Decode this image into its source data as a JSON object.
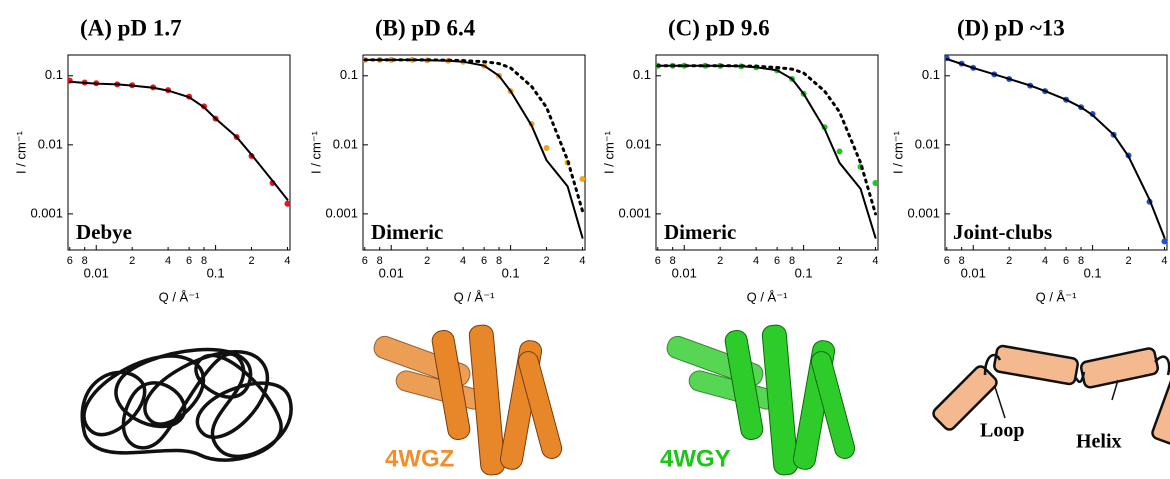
{
  "chart_data": [
    {
      "type": "line",
      "title": "(A) pD 1.7",
      "annotation": "Debye",
      "xlabel": "Q / Å⁻¹",
      "ylabel": "I / cm⁻¹",
      "log_x": true,
      "log_y": true,
      "x": [
        0.006,
        0.008,
        0.01,
        0.015,
        0.02,
        0.03,
        0.04,
        0.06,
        0.08,
        0.1,
        0.15,
        0.2,
        0.3,
        0.4
      ],
      "series": [
        {
          "style": "points",
          "color": "#e8161b",
          "values": [
            0.085,
            0.08,
            0.078,
            0.075,
            0.073,
            0.068,
            0.062,
            0.05,
            0.036,
            0.024,
            0.013,
            0.0069,
            0.0028,
            0.0014
          ]
        },
        {
          "style": "solid",
          "color": "#000000",
          "values": [
            0.082,
            0.079,
            0.077,
            0.075,
            0.072,
            0.067,
            0.061,
            0.049,
            0.035,
            0.024,
            0.013,
            0.0072,
            0.003,
            0.0016
          ]
        }
      ],
      "xlim": [
        0.0058,
        0.42
      ],
      "ylim": [
        0.0003,
        0.2
      ],
      "xticks": [
        {
          "value": 0.006,
          "label": "6"
        },
        {
          "value": 0.008,
          "label": "8"
        },
        0.01,
        {
          "value": 0.02,
          "label": "2"
        },
        {
          "value": 0.04,
          "label": "4"
        },
        {
          "value": 0.06,
          "label": "6"
        },
        {
          "value": 0.08,
          "label": "8"
        },
        0.1,
        {
          "value": 0.2,
          "label": "2"
        },
        {
          "value": 0.4,
          "label": "4"
        }
      ],
      "yticks": [
        0.001,
        0.01,
        0.1
      ]
    },
    {
      "type": "line",
      "title": "(B) pD 6.4",
      "annotation": "Dimeric",
      "xlabel": "Q / Å⁻¹",
      "ylabel": "I / cm⁻¹",
      "log_x": true,
      "log_y": true,
      "x": [
        0.006,
        0.008,
        0.01,
        0.015,
        0.02,
        0.03,
        0.04,
        0.06,
        0.08,
        0.1,
        0.15,
        0.2,
        0.3,
        0.4
      ],
      "series": [
        {
          "style": "points",
          "color": "#f5a31c",
          "values": [
            0.17,
            0.17,
            0.17,
            0.17,
            0.168,
            0.165,
            0.16,
            0.14,
            0.1,
            0.06,
            0.02,
            0.009,
            0.0055,
            0.0032
          ]
        },
        {
          "style": "solid",
          "color": "#000000",
          "values": [
            0.17,
            0.17,
            0.17,
            0.17,
            0.168,
            0.165,
            0.16,
            0.14,
            0.1,
            0.06,
            0.019,
            0.006,
            0.0025,
            0.00045
          ]
        },
        {
          "style": "dotted",
          "color": "#000000",
          "values": [
            0.17,
            0.17,
            0.17,
            0.17,
            0.17,
            0.168,
            0.166,
            0.16,
            0.15,
            0.13,
            0.07,
            0.035,
            0.006,
            0.0011
          ]
        }
      ],
      "xlim": [
        0.0058,
        0.42
      ],
      "ylim": [
        0.0003,
        0.2
      ],
      "xticks": [
        {
          "value": 0.006,
          "label": "6"
        },
        {
          "value": 0.008,
          "label": "8"
        },
        0.01,
        {
          "value": 0.02,
          "label": "2"
        },
        {
          "value": 0.04,
          "label": "4"
        },
        {
          "value": 0.06,
          "label": "6"
        },
        {
          "value": 0.08,
          "label": "8"
        },
        0.1,
        {
          "value": 0.2,
          "label": "2"
        },
        {
          "value": 0.4,
          "label": "4"
        }
      ],
      "yticks": [
        0.001,
        0.01,
        0.1
      ]
    },
    {
      "type": "line",
      "title": "(C) pD 9.6",
      "annotation": "Dimeric",
      "xlabel": "Q / Å⁻¹",
      "ylabel": "I / cm⁻¹",
      "log_x": true,
      "log_y": true,
      "x": [
        0.006,
        0.008,
        0.01,
        0.015,
        0.02,
        0.03,
        0.04,
        0.06,
        0.08,
        0.1,
        0.15,
        0.2,
        0.3,
        0.4
      ],
      "series": [
        {
          "style": "points",
          "color": "#22c41e",
          "values": [
            0.14,
            0.14,
            0.14,
            0.14,
            0.139,
            0.137,
            0.133,
            0.12,
            0.09,
            0.055,
            0.018,
            0.008,
            0.0048,
            0.0028
          ]
        },
        {
          "style": "solid",
          "color": "#000000",
          "values": [
            0.14,
            0.14,
            0.14,
            0.14,
            0.139,
            0.137,
            0.133,
            0.12,
            0.09,
            0.055,
            0.017,
            0.0055,
            0.0023,
            0.00045
          ]
        },
        {
          "style": "dotted",
          "color": "#000000",
          "values": [
            0.14,
            0.14,
            0.14,
            0.14,
            0.14,
            0.139,
            0.137,
            0.132,
            0.125,
            0.11,
            0.06,
            0.03,
            0.0055,
            0.001
          ]
        }
      ],
      "xlim": [
        0.0058,
        0.42
      ],
      "ylim": [
        0.0003,
        0.2
      ],
      "xticks": [
        {
          "value": 0.006,
          "label": "6"
        },
        {
          "value": 0.008,
          "label": "8"
        },
        0.01,
        {
          "value": 0.02,
          "label": "2"
        },
        {
          "value": 0.04,
          "label": "4"
        },
        {
          "value": 0.06,
          "label": "6"
        },
        {
          "value": 0.08,
          "label": "8"
        },
        0.1,
        {
          "value": 0.2,
          "label": "2"
        },
        {
          "value": 0.4,
          "label": "4"
        }
      ],
      "yticks": [
        0.001,
        0.01,
        0.1
      ]
    },
    {
      "type": "line",
      "title": "(D) pD ~13",
      "annotation": "Joint-clubs",
      "xlabel": "Q / Å⁻¹",
      "ylabel": "I / cm⁻¹",
      "log_x": true,
      "log_y": true,
      "x": [
        0.006,
        0.008,
        0.01,
        0.015,
        0.02,
        0.03,
        0.04,
        0.06,
        0.08,
        0.1,
        0.15,
        0.2,
        0.3,
        0.4
      ],
      "series": [
        {
          "style": "points",
          "color": "#1f4fe0",
          "values": [
            0.18,
            0.15,
            0.13,
            0.105,
            0.09,
            0.072,
            0.06,
            0.045,
            0.035,
            0.028,
            0.014,
            0.007,
            0.0015,
            0.0004
          ]
        },
        {
          "style": "solid",
          "color": "#000000",
          "values": [
            0.175,
            0.148,
            0.13,
            0.105,
            0.09,
            0.072,
            0.06,
            0.045,
            0.035,
            0.027,
            0.014,
            0.0068,
            0.0016,
            0.00045
          ]
        }
      ],
      "xlim": [
        0.0058,
        0.42
      ],
      "ylim": [
        0.0003,
        0.2
      ],
      "xticks": [
        {
          "value": 0.006,
          "label": "6"
        },
        {
          "value": 0.008,
          "label": "8"
        },
        0.01,
        {
          "value": 0.02,
          "label": "2"
        },
        {
          "value": 0.04,
          "label": "4"
        },
        {
          "value": 0.06,
          "label": "6"
        },
        {
          "value": 0.08,
          "label": "8"
        },
        0.1,
        {
          "value": 0.2,
          "label": "2"
        },
        {
          "value": 0.4,
          "label": "4"
        }
      ],
      "yticks": [
        0.001,
        0.01,
        0.1
      ]
    }
  ],
  "illustrations": {
    "pdb_b": "4WGZ",
    "pdb_c": "4WGY",
    "loop": "Loop",
    "helix": "Helix"
  }
}
